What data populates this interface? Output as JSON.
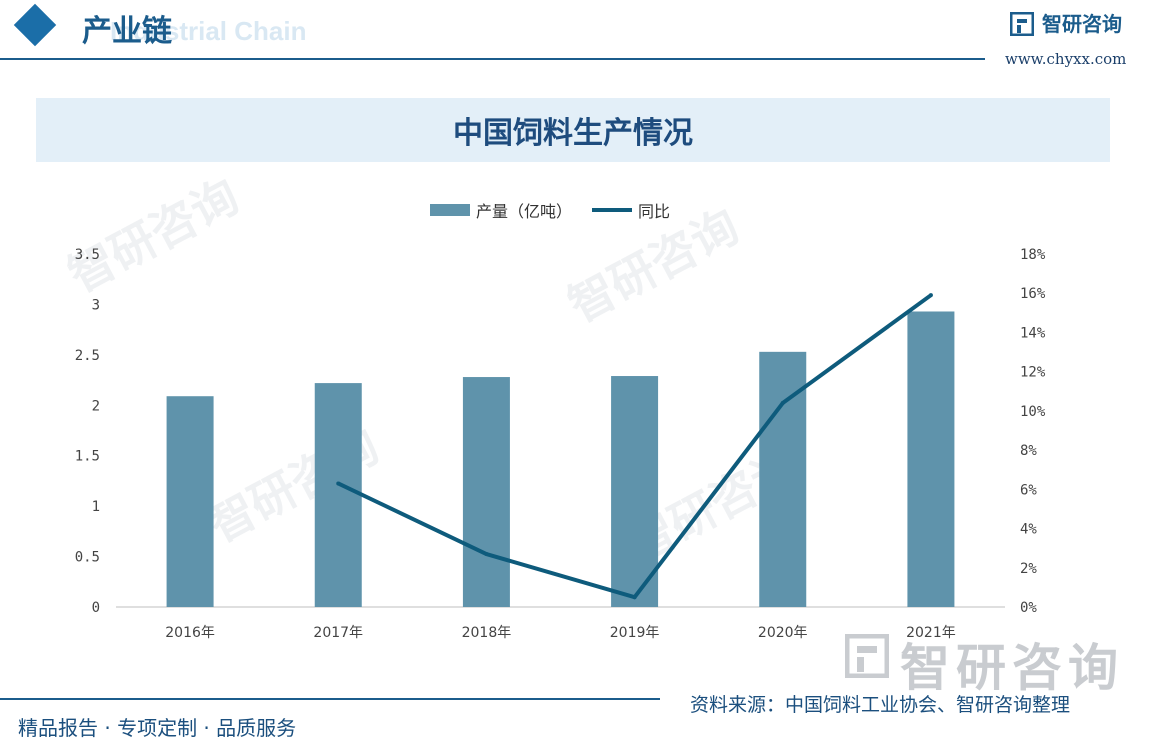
{
  "header": {
    "section_title": "产业链",
    "section_subtitle": "Industrial Chain",
    "brand": "智研咨询",
    "site": "www.chyxx.com"
  },
  "title": "中国饲料生产情况",
  "legend": {
    "bar": "产量（亿吨）",
    "line": "同比"
  },
  "watermark": "智研咨询",
  "source": "资料来源：中国饲料工业协会、智研咨询整理",
  "footer": "精品报告 · 专项定制 · 品质服务",
  "colors": {
    "bar": "#5f93ab",
    "line": "#0e5b7c",
    "accent": "#1b5c8c"
  },
  "chart_data": {
    "type": "bar",
    "title": "中国饲料生产情况",
    "categories": [
      "2016年",
      "2017年",
      "2018年",
      "2019年",
      "2020年",
      "2021年"
    ],
    "series": [
      {
        "name": "产量（亿吨）",
        "type": "bar",
        "axis": "left",
        "values": [
          2.09,
          2.22,
          2.28,
          2.29,
          2.53,
          2.93
        ]
      },
      {
        "name": "同比",
        "type": "line",
        "axis": "right",
        "values": [
          null,
          6.3,
          2.7,
          0.5,
          10.4,
          15.9
        ]
      }
    ],
    "ylim": [
      0,
      3.5
    ],
    "yticks": [
      "0",
      "0.5",
      "1",
      "1.5",
      "2",
      "2.5",
      "3",
      "3.5"
    ],
    "y2lim": [
      0,
      18
    ],
    "y2ticks": [
      "0%",
      "2%",
      "4%",
      "6%",
      "8%",
      "10%",
      "12%",
      "14%",
      "16%",
      "18%"
    ],
    "legend_position": "top-center",
    "grid": false
  }
}
